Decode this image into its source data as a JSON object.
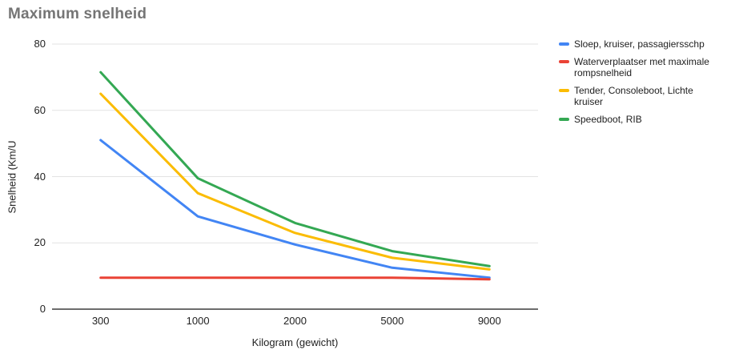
{
  "chart_data": {
    "type": "line",
    "title": "Maximum snelheid",
    "categories": [
      "300",
      "1000",
      "2000",
      "5000",
      "9000"
    ],
    "series": [
      {
        "name": "Sloep, kruiser, passagiersschp",
        "color": "#4285F4",
        "values": [
          51,
          28,
          19.5,
          12.5,
          9.5
        ]
      },
      {
        "name": "Waterverplaatser met maximale rompsnelheid",
        "color": "#EA4335",
        "values": [
          9.5,
          9.5,
          9.5,
          9.5,
          9
        ]
      },
      {
        "name": "Tender, Consoleboot, Lichte kruiser",
        "color": "#FBBC04",
        "values": [
          65,
          35,
          23,
          15.5,
          12
        ]
      },
      {
        "name": "Speedboot, RIB",
        "color": "#34A853",
        "values": [
          71.5,
          39.5,
          26,
          17.5,
          13
        ]
      }
    ],
    "xlabel": "Kilogram (gewicht)",
    "ylabel": "Snelheid (Km/U",
    "ylim": [
      0,
      80
    ],
    "yticks": [
      0,
      20,
      40,
      60,
      80
    ],
    "grid": true,
    "legend_position": "right"
  },
  "colors": {
    "title_text": "#757575",
    "axis_text": "#222222",
    "gridline": "#e3e3e3",
    "baseline": "#3d3d3d",
    "background": "#ffffff"
  }
}
